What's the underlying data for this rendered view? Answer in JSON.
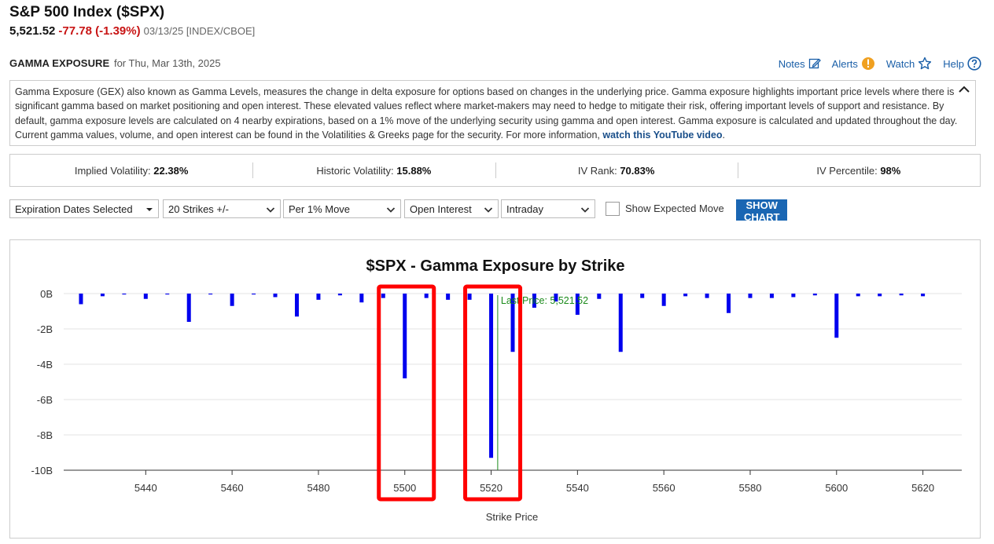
{
  "header": {
    "title": "S&P 500 Index ($SPX)",
    "last": "5,521.52",
    "change": "-77.78 (-1.39%)",
    "meta": "03/13/25 [INDEX/CBOE]"
  },
  "section": {
    "heading": "GAMMA EXPOSURE",
    "subheading": "for Thu, Mar 13th, 2025"
  },
  "toolbar": {
    "notes": "Notes",
    "alerts": "Alerts",
    "watch": "Watch",
    "help": "Help"
  },
  "description": {
    "text": "Gamma Exposure (GEX) also known as Gamma Levels, measures the change in delta exposure for options based on changes in the underlying price. Gamma exposure highlights important price levels where there is significant gamma based on market positioning and open interest. These elevated values reflect where market-makers may need to hedge to mitigate their risk, offering important levels of support and resistance. By default, gamma exposure levels are calculated on 4 nearby expirations, based on a 1% move of the underlying security using gamma and open interest. Gamma exposure is calculated and updated throughout the day. Current gamma values, volume, and open interest can be found in the Volatilities & Greeks page for the security. For more information, ",
    "link": "watch this YouTube video",
    "end": "."
  },
  "stats": {
    "iv_label": "Implied Volatility:",
    "iv_value": "22.38%",
    "hv_label": "Historic Volatility:",
    "hv_value": "15.88%",
    "ivr_label": "IV Rank:",
    "ivr_value": "70.83%",
    "ivp_label": "IV Percentile:",
    "ivp_value": "98%"
  },
  "controls": {
    "expiration": "Expiration Dates Selected",
    "strikes": "20 Strikes +/-",
    "move": "Per 1% Move",
    "metric": "Open Interest",
    "period": "Intraday",
    "expected_move": "Show Expected Move",
    "show_chart": "SHOW CHART"
  },
  "colors": {
    "bar": "#0000ee",
    "last_price_line": "#1a8a1a",
    "highlight": "#ff0000",
    "accent": "#1a66b3"
  },
  "chart_data": {
    "type": "bar",
    "title": "$SPX - Gamma Exposure by Strike",
    "xlabel": "Strike Price",
    "ylabel": "",
    "ylim": [
      -10,
      0
    ],
    "y_ticks": [
      0,
      -2,
      -4,
      -6,
      -8,
      -10
    ],
    "y_tick_labels": [
      "0B",
      "-2B",
      "-4B",
      "-6B",
      "-8B",
      "-10B"
    ],
    "x_ticks": [
      5440,
      5460,
      5480,
      5500,
      5520,
      5540,
      5560,
      5580,
      5600,
      5620
    ],
    "grid": true,
    "last_price": 5521.52,
    "last_price_label": "Last Price: 5,521.52",
    "highlighted_strikes": [
      5500,
      5520
    ],
    "series": [
      {
        "x": [
          5425,
          5430,
          5435,
          5440,
          5445,
          5450,
          5455,
          5460,
          5465,
          5470,
          5475,
          5480,
          5485,
          5490,
          5495,
          5500,
          5505,
          5510,
          5515,
          5520,
          5525,
          5530,
          5535,
          5540,
          5545,
          5550,
          5555,
          5560,
          5565,
          5570,
          5575,
          5580,
          5585,
          5590,
          5595,
          5600,
          5605,
          5610,
          5615,
          5620
        ],
        "values": [
          -0.6,
          -0.15,
          -0.05,
          -0.3,
          -0.05,
          -1.6,
          -0.05,
          -0.7,
          -0.05,
          -0.2,
          -1.3,
          -0.35,
          -0.1,
          -0.5,
          -0.25,
          -4.8,
          -0.25,
          -0.35,
          -0.35,
          -9.3,
          -3.3,
          -0.8,
          -0.45,
          -1.2,
          -0.3,
          -3.3,
          -0.25,
          -0.7,
          -0.15,
          -0.25,
          -1.1,
          -0.25,
          -0.25,
          -0.2,
          -0.1,
          -2.5,
          -0.15,
          -0.15,
          -0.1,
          -0.15
        ]
      }
    ]
  }
}
